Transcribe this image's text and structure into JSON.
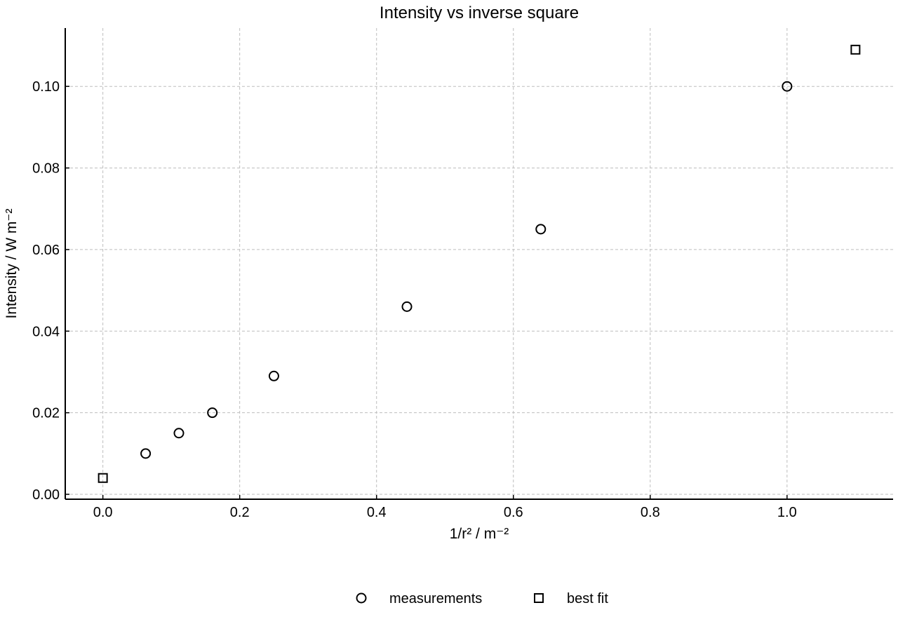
{
  "chart_data": {
    "type": "scatter",
    "title": "Intensity vs inverse square",
    "xlabel": "1/r² / m⁻²",
    "ylabel": "Intensity / W m⁻²",
    "xlim": [
      -0.055,
      1.155
    ],
    "ylim": [
      -0.0012,
      0.1143
    ],
    "xticks": [
      0.0,
      0.2,
      0.4,
      0.6,
      0.8,
      1.0
    ],
    "xtick_labels": [
      "0.0",
      "0.2",
      "0.4",
      "0.6",
      "0.8",
      "1.0"
    ],
    "yticks": [
      0.0,
      0.02,
      0.04,
      0.06,
      0.08,
      0.1
    ],
    "ytick_labels": [
      "0.00",
      "0.02",
      "0.04",
      "0.06",
      "0.08",
      "0.10"
    ],
    "grid": true,
    "legend_position": "bottom-center",
    "series": [
      {
        "name": "measurements",
        "marker": "circle",
        "color": "#000000",
        "x": [
          0.0625,
          0.1111,
          0.16,
          0.25,
          0.4444,
          0.64,
          1.0
        ],
        "y": [
          0.01,
          0.015,
          0.02,
          0.029,
          0.046,
          0.065,
          0.1
        ]
      },
      {
        "name": "best fit",
        "marker": "square",
        "color": "#000000",
        "x": [
          0.0,
          1.1
        ],
        "y": [
          0.004,
          0.109
        ]
      }
    ]
  }
}
